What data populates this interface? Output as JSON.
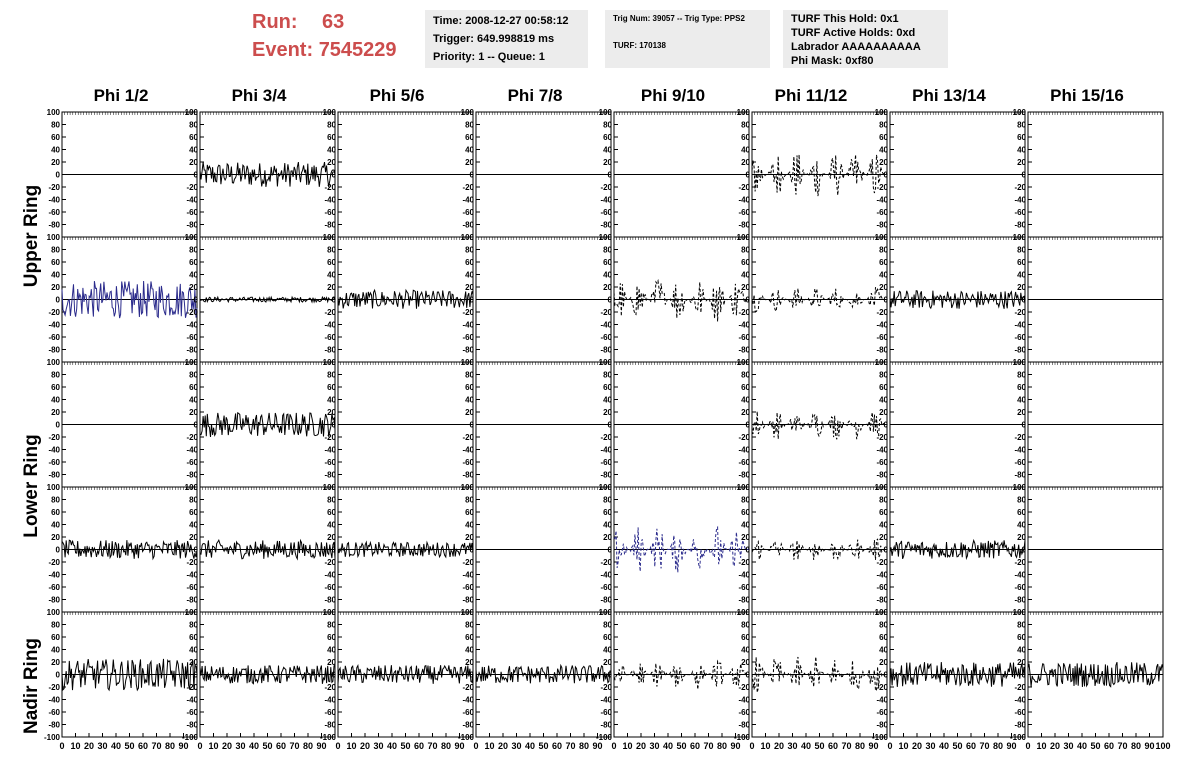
{
  "run": {
    "run_label": "Run:",
    "run_value": "63",
    "event_label": "Event:",
    "event_value": "7545229"
  },
  "info_time": {
    "line1": "Time: 2008-12-27 00:58:12",
    "line2": "Trigger: 649.998819 ms",
    "line3": "Priority: 1 -- Queue: 1"
  },
  "info_trig": {
    "line1": "Trig Num: 39057 -- Trig Type: PPS2",
    "line2": "TURF: 170138"
  },
  "info_turf": {
    "line1": "TURF This Hold: 0x1",
    "line2": "TURF Active Holds: 0xd",
    "line3": "Labrador AAAAAAAAAA",
    "line4": "Phi Mask: 0xf80"
  },
  "columns": [
    "Phi 1/2",
    "Phi 3/4",
    "Phi 5/6",
    "Phi 7/8",
    "Phi 9/10",
    "Phi 11/12",
    "Phi 13/14",
    "Phi 15/16"
  ],
  "rows": [
    "Upper Ring",
    "Upper Ring",
    "Lower Ring",
    "Lower Ring",
    "Nadir Ring"
  ],
  "row_labels": [
    "Upper Ring",
    "Lower Ring",
    "Nadir Ring"
  ],
  "chart_data": {
    "type": "line",
    "title": "",
    "xlim": [
      0,
      100
    ],
    "ylim": [
      -100,
      100
    ],
    "x_ticks": [
      0,
      10,
      20,
      30,
      40,
      50,
      60,
      70,
      80,
      90
    ],
    "y_ticks": [
      100,
      80,
      60,
      40,
      20,
      0,
      -20,
      -40,
      -60,
      -80,
      -100
    ],
    "y_tick_labels": [
      "100",
      "80",
      "60",
      "40",
      "20",
      "0",
      "-20",
      "-40",
      "-60",
      "-80",
      "-100"
    ],
    "grid": false,
    "colors": {
      "solid": "#000000",
      "blue": "#2b2b8c",
      "zero": "#000000"
    },
    "panels": [
      [
        "flat",
        "solid20",
        "flat",
        "flat",
        "flat",
        "dash40",
        "flat",
        "flat"
      ],
      [
        "blue30",
        "small",
        "solid15",
        "flat",
        "dash40",
        "dash20",
        "solid15",
        "flat"
      ],
      [
        "flat",
        "solid20",
        "flat",
        "flat",
        "flat",
        "dash25",
        "flat",
        "flat"
      ],
      [
        "solid15",
        "solid15",
        "solid12",
        "flat",
        "bluedash40",
        "dash20",
        "solid15",
        "flat"
      ],
      [
        "solid25",
        "solid15",
        "solid15",
        "solid15",
        "dash25",
        "dash30",
        "solid20",
        "solid20"
      ]
    ],
    "amplitudes": {
      "flat": 0,
      "small": 4,
      "solid12": 12,
      "solid15": 15,
      "solid20": 20,
      "solid25": 25,
      "blue30": 30,
      "dash20": 20,
      "dash25": 25,
      "dash30": 30,
      "dash40": 40,
      "bluedash40": 40
    }
  }
}
